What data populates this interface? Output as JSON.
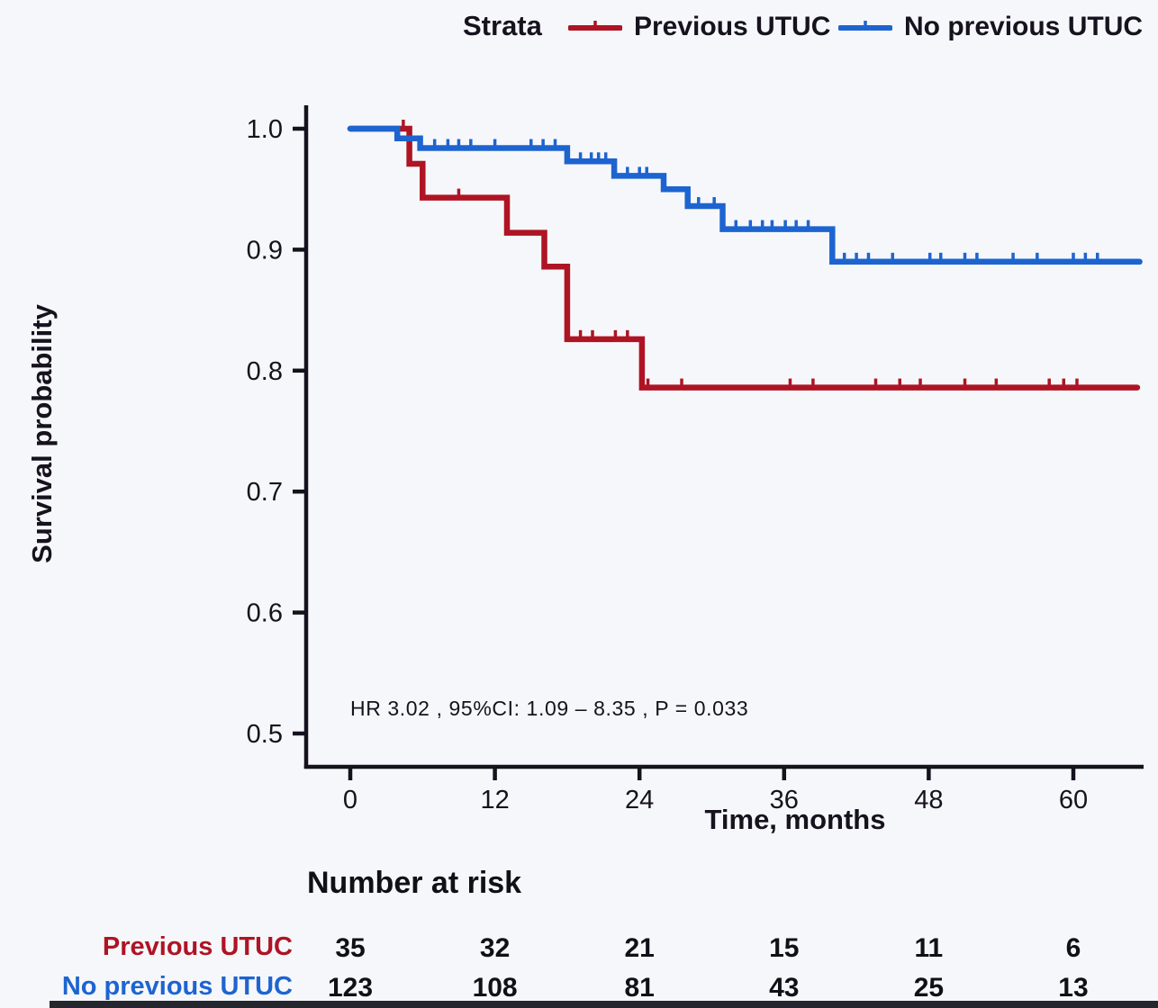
{
  "chart_data": {
    "type": "line",
    "subtype": "kaplan-meier-step-curve",
    "title": "",
    "legend_title": "Strata",
    "legend_position": "top",
    "ylabel": "Survival probability",
    "xlabel": "Time, months",
    "x_ticks": [
      0,
      12,
      24,
      36,
      48,
      60
    ],
    "x_tick_labels": [
      "0",
      "12",
      "24",
      "36",
      "48",
      "60"
    ],
    "y_ticks": [
      1.0,
      0.9,
      0.8,
      0.7,
      0.6,
      0.5
    ],
    "y_tick_labels": [
      "1.0",
      "0.9",
      "0.8",
      "0.7",
      "0.6",
      "0.5"
    ],
    "xlim": [
      0,
      65.5
    ],
    "ylim": [
      0.47,
      1.02
    ],
    "grid": "off",
    "annotation": "HR  3.02 , 95%CI:  1.09 – 8.35 ,  P = 0.033",
    "axis_color": "#15111d",
    "text_color": "#16121e",
    "series": [
      {
        "name": "Previous UTUC",
        "color": "#ae1424",
        "start_survival": 1.0,
        "end_time": 65.3,
        "steps": [
          [
            4.9,
            0.971
          ],
          [
            6.0,
            0.943
          ],
          [
            13.0,
            0.914
          ],
          [
            16.1,
            0.886
          ],
          [
            18.0,
            0.826
          ],
          [
            24.2,
            0.786
          ]
        ],
        "censors": [
          [
            4.4,
            1.0
          ],
          [
            9.0,
            0.943
          ],
          [
            19.1,
            0.826
          ],
          [
            20.1,
            0.826
          ],
          [
            22.0,
            0.826
          ],
          [
            23.0,
            0.826
          ],
          [
            24.7,
            0.786
          ],
          [
            27.5,
            0.786
          ],
          [
            36.5,
            0.786
          ],
          [
            38.4,
            0.786
          ],
          [
            43.6,
            0.786
          ],
          [
            45.6,
            0.786
          ],
          [
            47.3,
            0.786
          ],
          [
            51.0,
            0.786
          ],
          [
            53.6,
            0.786
          ],
          [
            58.0,
            0.786
          ],
          [
            59.2,
            0.786
          ],
          [
            60.3,
            0.786
          ]
        ]
      },
      {
        "name": "No previous UTUC",
        "color": "#1d64d0",
        "start_survival": 1.0,
        "end_time": 65.5,
        "steps": [
          [
            3.9,
            0.992
          ],
          [
            5.8,
            0.984
          ],
          [
            18.0,
            0.973
          ],
          [
            21.9,
            0.961
          ],
          [
            26.0,
            0.95
          ],
          [
            28.0,
            0.936
          ],
          [
            30.9,
            0.917
          ],
          [
            40.0,
            0.89
          ]
        ],
        "censors": [
          [
            7.0,
            0.984
          ],
          [
            8.1,
            0.984
          ],
          [
            9.0,
            0.984
          ],
          [
            10.0,
            0.984
          ],
          [
            12.0,
            0.984
          ],
          [
            15.0,
            0.984
          ],
          [
            16.0,
            0.984
          ],
          [
            17.0,
            0.984
          ],
          [
            19.1,
            0.973
          ],
          [
            20.0,
            0.973
          ],
          [
            20.6,
            0.973
          ],
          [
            21.2,
            0.973
          ],
          [
            23.0,
            0.961
          ],
          [
            24.0,
            0.961
          ],
          [
            24.6,
            0.961
          ],
          [
            28.9,
            0.936
          ],
          [
            30.2,
            0.936
          ],
          [
            32.0,
            0.917
          ],
          [
            33.2,
            0.917
          ],
          [
            34.2,
            0.917
          ],
          [
            35.0,
            0.917
          ],
          [
            36.1,
            0.917
          ],
          [
            37.0,
            0.917
          ],
          [
            38.0,
            0.917
          ],
          [
            41.0,
            0.89
          ],
          [
            42.0,
            0.89
          ],
          [
            43.0,
            0.89
          ],
          [
            45.0,
            0.89
          ],
          [
            48.1,
            0.89
          ],
          [
            49.0,
            0.89
          ],
          [
            51.0,
            0.89
          ],
          [
            52.0,
            0.89
          ],
          [
            55.0,
            0.89
          ],
          [
            57.0,
            0.89
          ],
          [
            60.0,
            0.89
          ],
          [
            61.0,
            0.89
          ],
          [
            62.0,
            0.89
          ]
        ]
      }
    ],
    "risk_table": {
      "title": "Number at risk",
      "times": [
        0,
        12,
        24,
        36,
        48,
        60
      ],
      "rows": [
        {
          "label": "Previous UTUC",
          "color": "#ae1424",
          "values": [
            "35",
            "32",
            "21",
            "15",
            "11",
            "6"
          ]
        },
        {
          "label": "No previous UTUC",
          "color": "#1d64d0",
          "values": [
            "123",
            "108",
            "81",
            "43",
            "25",
            "13"
          ]
        }
      ]
    }
  }
}
